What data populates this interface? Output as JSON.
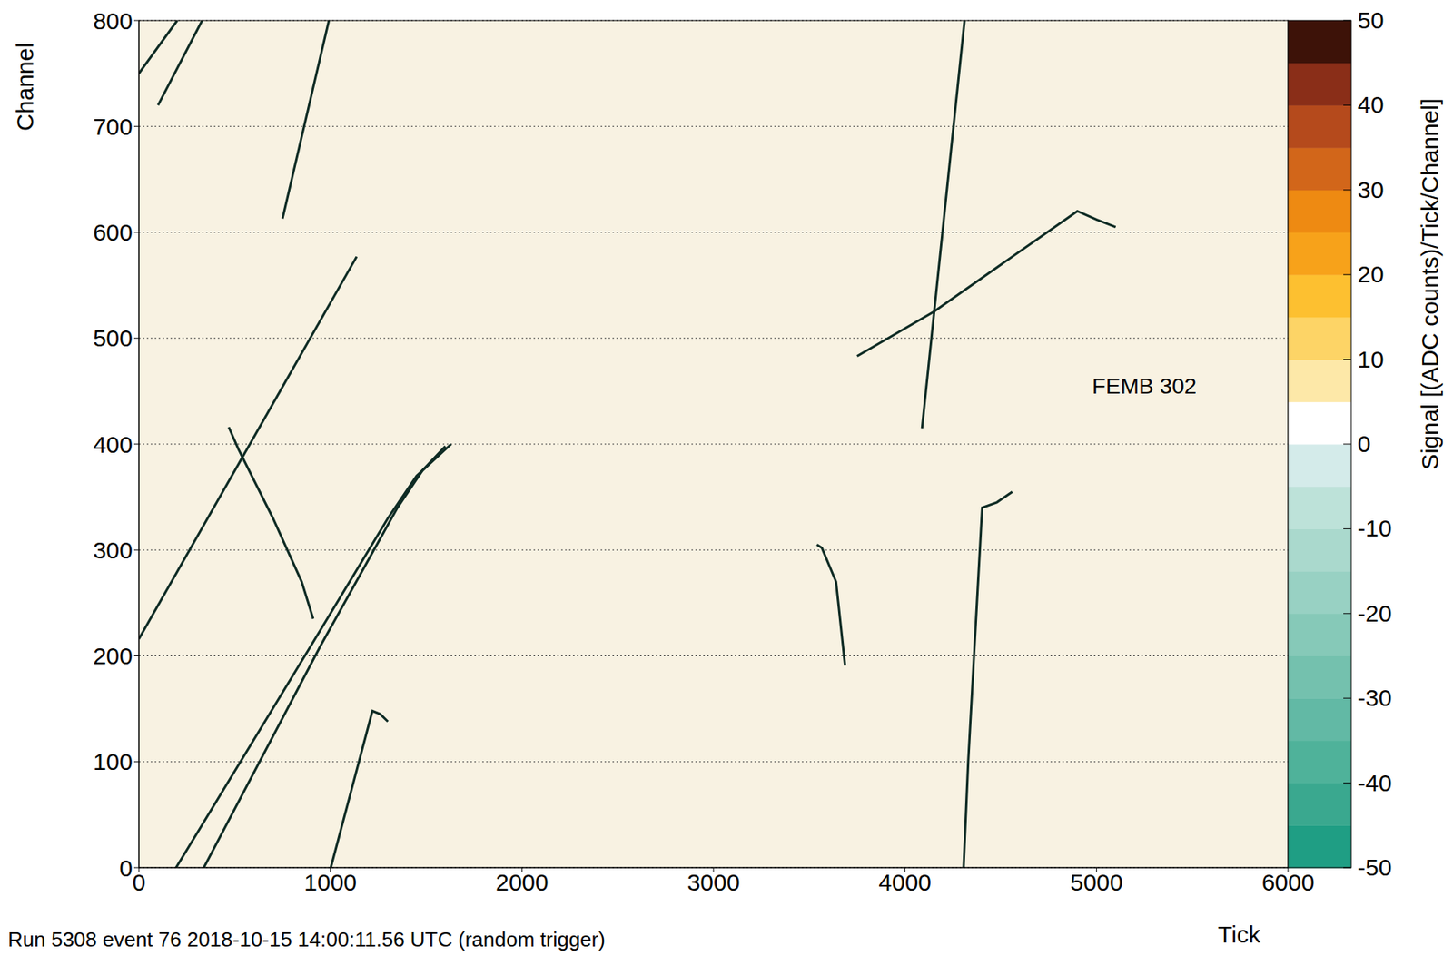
{
  "chart_data": {
    "type": "line",
    "x_label": "Tick",
    "y_label": "Channel",
    "footer": "Run 5308 event 76 2018-10-15 14:00:11.56 UTC (random trigger)",
    "xlim": [
      0,
      6000
    ],
    "ylim": [
      0,
      800
    ],
    "xticks": [
      0,
      1000,
      2000,
      3000,
      4000,
      5000,
      6000
    ],
    "yticks": [
      0,
      100,
      200,
      300,
      400,
      500,
      600,
      700,
      800
    ],
    "grid": true,
    "color": "#0e2b24",
    "annotations": [
      {
        "text": "FEMB 302",
        "x": 5250,
        "y": 455
      }
    ],
    "series": [
      {
        "x": [
          0,
          1137
        ],
        "y": [
          216,
          577
        ]
      },
      {
        "x": [
          194,
          900,
          1300,
          1450,
          1630
        ],
        "y": [
          0,
          210,
          330,
          370,
          400
        ]
      },
      {
        "x": [
          339,
          950,
          1350,
          1480,
          1600
        ],
        "y": [
          0,
          210,
          340,
          375,
          398
        ]
      },
      {
        "x": [
          1002,
          1219,
          1260,
          1300
        ],
        "y": [
          0,
          148,
          145,
          138
        ]
      },
      {
        "x": [
          469,
          520,
          700,
          850,
          910
        ],
        "y": [
          416,
          395,
          330,
          270,
          235
        ]
      },
      {
        "x": [
          750,
          992
        ],
        "y": [
          613,
          800
        ]
      },
      {
        "x": [
          0,
          200
        ],
        "y": [
          750,
          800
        ]
      },
      {
        "x": [
          100,
          330
        ],
        "y": [
          720,
          800
        ]
      },
      {
        "x": [
          4306,
          4330,
          4403,
          4480,
          4560
        ],
        "y": [
          0,
          100,
          340,
          345,
          355
        ]
      },
      {
        "x": [
          3687,
          3640,
          3566,
          3540
        ],
        "y": [
          191,
          270,
          302,
          305
        ]
      },
      {
        "x": [
          4089,
          4311
        ],
        "y": [
          415,
          800
        ]
      },
      {
        "x": [
          3750,
          4150,
          4900,
          5000,
          5100
        ],
        "y": [
          483,
          525,
          620,
          612,
          605
        ]
      }
    ],
    "colorbar": {
      "label": "Signal [(ADC counts)/Tick/Channel]",
      "range": [
        -50,
        50
      ],
      "ticks": [
        -50,
        -40,
        -30,
        -20,
        -10,
        0,
        10,
        20,
        30,
        40,
        50
      ],
      "colors": [
        "#1f9e84",
        "#3aa88f",
        "#4fb29a",
        "#62b9a5",
        "#74c1ae",
        "#86c9b8",
        "#98d1c3",
        "#aad9cd",
        "#bde2d9",
        "#d4ebea",
        "#ffffff",
        "#fde8a8",
        "#fdd466",
        "#fdc030",
        "#f7a21a",
        "#ee8a12",
        "#d2661a",
        "#b54a1c",
        "#8a2e18",
        "#3d1208"
      ]
    }
  }
}
